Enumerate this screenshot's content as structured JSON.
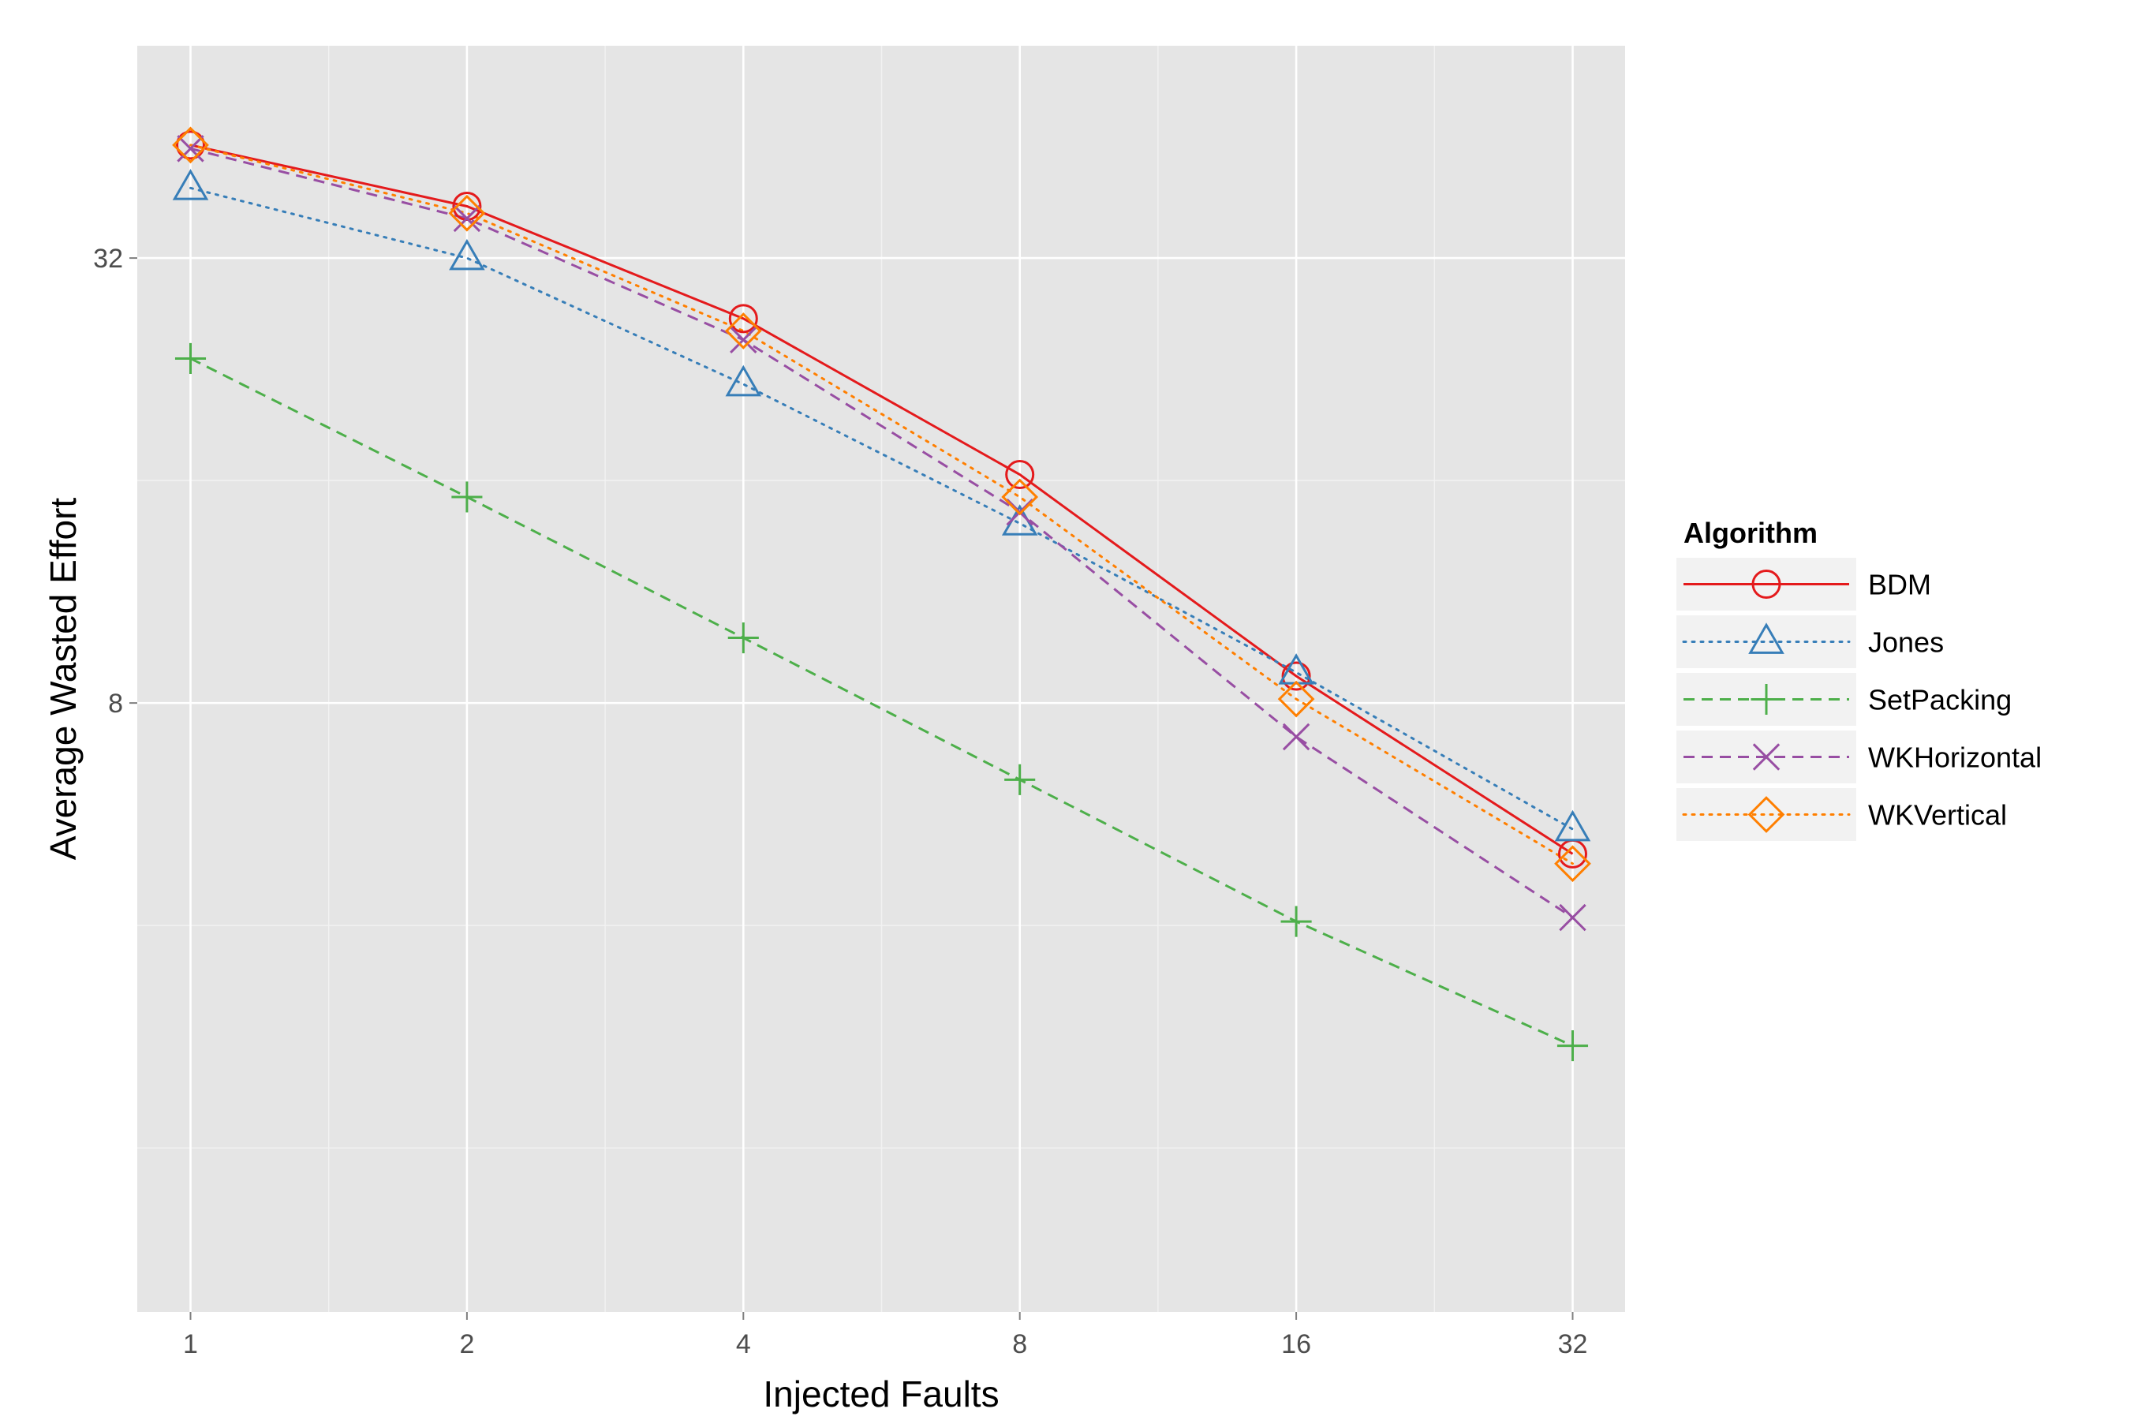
{
  "chart_data": {
    "type": "line",
    "xlabel": "Injected Faults",
    "ylabel": "Average Wasted Effort",
    "x_scale": "log2",
    "y_scale": "log2",
    "x": [
      1,
      2,
      4,
      8,
      16,
      32
    ],
    "x_tick_labels": [
      "1",
      "2",
      "4",
      "8",
      "16",
      "32"
    ],
    "y_tick_values": [
      32,
      8
    ],
    "y_tick_labels": [
      "32",
      "8"
    ],
    "xlim": [
      0.875,
      36.5
    ],
    "ylim": [
      1.2,
      62
    ],
    "grid": true,
    "legend": {
      "title": "Algorithm",
      "position": "right"
    },
    "series": [
      {
        "name": "BDM",
        "values": [
          45.5,
          37.6,
          26.5,
          16.3,
          8.7,
          5.0
        ],
        "color": "#e41a1c",
        "dash": "solid",
        "marker": "circle"
      },
      {
        "name": "Jones",
        "values": [
          39.8,
          32.0,
          21.6,
          14.0,
          8.8,
          5.4
        ],
        "color": "#377eb8",
        "dash": "dotted",
        "marker": "triangle"
      },
      {
        "name": "SetPacking",
        "values": [
          23.4,
          15.2,
          9.8,
          6.3,
          4.05,
          2.75
        ],
        "color": "#4daf4a",
        "dash": "dashed",
        "marker": "plus"
      },
      {
        "name": "WKHorizontal",
        "values": [
          45.0,
          36.2,
          24.8,
          14.5,
          7.2,
          4.1
        ],
        "color": "#984ea3",
        "dash": "dashed",
        "marker": "cross"
      },
      {
        "name": "WKVertical",
        "values": [
          45.5,
          36.8,
          25.5,
          15.2,
          8.1,
          4.85
        ],
        "color": "#ff7f00",
        "dash": "dotted",
        "marker": "diamond"
      }
    ]
  }
}
